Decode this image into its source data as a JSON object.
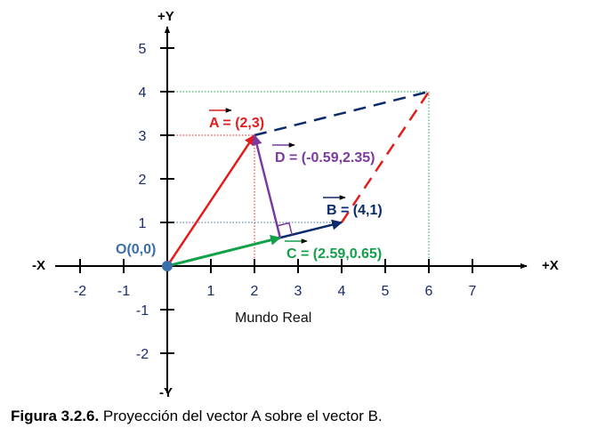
{
  "axes": {
    "x_pos_label": "+X",
    "x_neg_label": "-X",
    "y_pos_label": "+Y",
    "y_neg_label": "-Y",
    "x_ticks": [
      "-2",
      "-1",
      "1",
      "2",
      "3",
      "4",
      "5",
      "6",
      "7"
    ],
    "y_ticks": [
      "5",
      "4",
      "3",
      "2",
      "1",
      "-1",
      "-2"
    ]
  },
  "origin_label": "O(0,0)",
  "world_label": "Mundo Real",
  "vectors": {
    "A": {
      "label": "A = (2,3)",
      "x": 2,
      "y": 3,
      "color": "#e31c1c"
    },
    "B": {
      "label": "B = (4,1)",
      "x": 4,
      "y": 1,
      "color": "#0b2a6b"
    },
    "C": {
      "label": "C = (2.59,0.65)",
      "x": 2.59,
      "y": 0.65,
      "color": "#12a04a"
    },
    "D": {
      "label": "D = (-0.59,2.35)",
      "x": -0.59,
      "y": 2.35,
      "color": "#7a3aa0"
    }
  },
  "parallelogram_corner": {
    "x": 6,
    "y": 4
  },
  "colors": {
    "axis": "#000000",
    "tick_label": "#1a2a6b",
    "origin": "#3b6fa8",
    "guide_red": "#e31c1c",
    "guide_green": "#12a04a",
    "guide_blue": "#3b6fa8"
  },
  "caption": {
    "bold": "Figura 3.2.6.",
    "text": " Proyección del vector A sobre el vector B."
  }
}
